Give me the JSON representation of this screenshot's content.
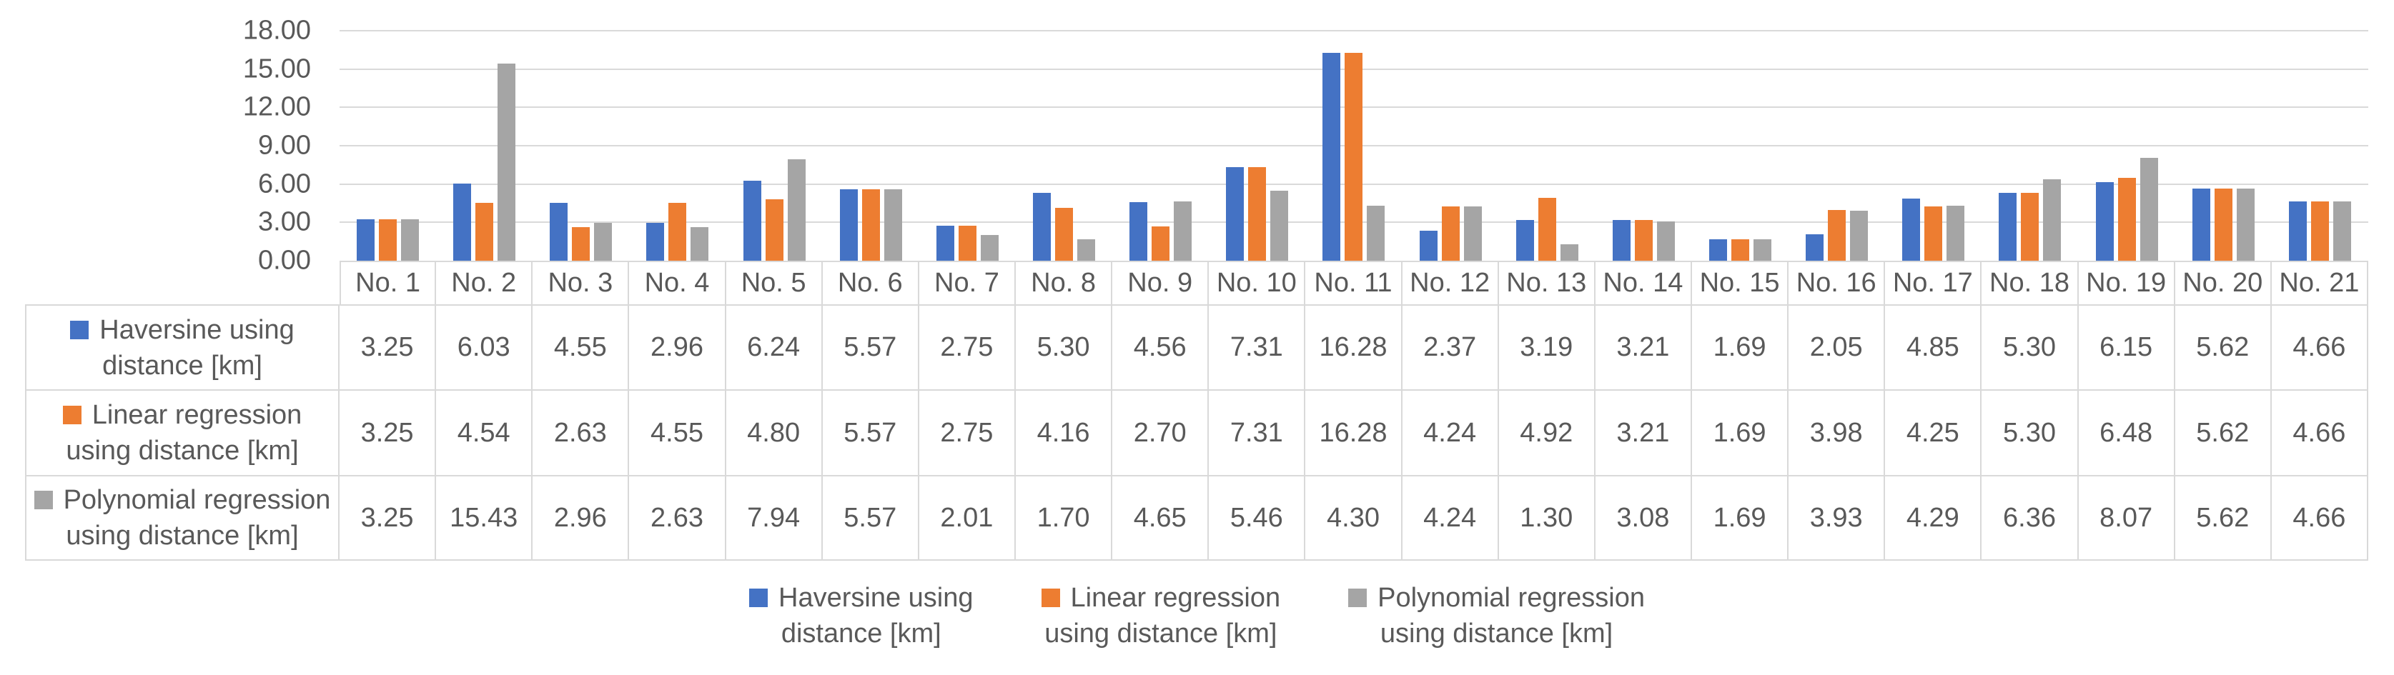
{
  "colors": {
    "text": "#595959",
    "gridline": "#D9D9D9",
    "table_border": "#D9D9D9",
    "series_blue": "#4472C4",
    "series_orange": "#ED7D31",
    "series_gray": "#A5A5A5"
  },
  "chart_data": {
    "type": "bar",
    "title": "",
    "categories": [
      "No. 1",
      "No. 2",
      "No. 3",
      "No. 4",
      "No. 5",
      "No. 6",
      "No. 7",
      "No. 8",
      "No. 9",
      "No. 10",
      "No. 11",
      "No. 12",
      "No. 13",
      "No. 14",
      "No. 15",
      "No. 16",
      "No. 17",
      "No. 18",
      "No. 19",
      "No. 20",
      "No. 21"
    ],
    "series": [
      {
        "name": "Haversine using distance [km]",
        "legend_lines": [
          "Haversine using",
          "distance [km]"
        ],
        "color": "#4472C4",
        "values": [
          3.25,
          6.03,
          4.55,
          2.96,
          6.24,
          5.57,
          2.75,
          5.3,
          4.56,
          7.31,
          16.28,
          2.37,
          3.19,
          3.21,
          1.69,
          2.05,
          4.85,
          5.3,
          6.15,
          5.62,
          4.66
        ]
      },
      {
        "name": "Linear regression using distance [km]",
        "legend_lines": [
          "Linear regression",
          "using distance [km]"
        ],
        "color": "#ED7D31",
        "values": [
          3.25,
          4.54,
          2.63,
          4.55,
          4.8,
          5.57,
          2.75,
          4.16,
          2.7,
          7.31,
          16.28,
          4.24,
          4.92,
          3.21,
          1.69,
          3.98,
          4.25,
          5.3,
          6.48,
          5.62,
          4.66
        ]
      },
      {
        "name": "Polynomial regression using distance [km]",
        "legend_lines": [
          "Polynomial regression",
          "using distance [km]"
        ],
        "color": "#A5A5A5",
        "values": [
          3.25,
          15.43,
          2.96,
          2.63,
          7.94,
          5.57,
          2.01,
          1.7,
          4.65,
          5.46,
          4.3,
          4.24,
          1.3,
          3.08,
          1.69,
          3.93,
          4.29,
          6.36,
          8.07,
          5.62,
          4.66
        ]
      }
    ],
    "xlabel": "",
    "ylabel": "",
    "ylim": [
      0,
      18
    ],
    "ytick_step": 3,
    "ytick_labels": [
      "0.00",
      "3.00",
      "6.00",
      "9.00",
      "12.00",
      "15.00",
      "18.00"
    ],
    "value_format_decimals": 2,
    "grid": true,
    "legend_position": "bottom",
    "show_data_table": true
  }
}
